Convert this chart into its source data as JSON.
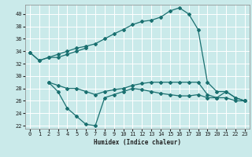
{
  "xlabel": "Humidex (Indice chaleur)",
  "background_color": "#caeaea",
  "grid_color": "#ffffff",
  "line_color": "#1a7070",
  "xlim": [
    -0.5,
    23.5
  ],
  "ylim": [
    21.5,
    41.5
  ],
  "yticks": [
    22,
    24,
    26,
    28,
    30,
    32,
    34,
    36,
    38,
    40
  ],
  "xticks": [
    0,
    1,
    2,
    3,
    4,
    5,
    6,
    7,
    8,
    9,
    10,
    11,
    12,
    13,
    14,
    15,
    16,
    17,
    18,
    19,
    20,
    21,
    22,
    23
  ],
  "line1_x": [
    0,
    1,
    2,
    3,
    4,
    5,
    6,
    7,
    8,
    9,
    10,
    11,
    12,
    13,
    14,
    15,
    16,
    17,
    18,
    19,
    20,
    21,
    22,
    23
  ],
  "line1_y": [
    33.8,
    32.5,
    33.0,
    33.5,
    34.0,
    34.5,
    34.8,
    35.2,
    36.0,
    36.8,
    37.5,
    38.3,
    38.8,
    39.0,
    39.5,
    40.5,
    41.0,
    40.0,
    37.5,
    29.0,
    27.5,
    27.5,
    26.5,
    26.0
  ],
  "line2_x": [
    0,
    1,
    2,
    3,
    4,
    5,
    6
  ],
  "line2_y": [
    33.8,
    32.5,
    33.0,
    33.0,
    33.5,
    34.0,
    34.5
  ],
  "line3_x": [
    2,
    3,
    4,
    5,
    6,
    7,
    8,
    9,
    10,
    11,
    12,
    13,
    14,
    15,
    16,
    17,
    18,
    19,
    20,
    21,
    22,
    23
  ],
  "line3_y": [
    29.0,
    27.5,
    24.8,
    23.5,
    22.2,
    22.0,
    26.5,
    27.0,
    27.5,
    28.0,
    27.8,
    27.5,
    27.2,
    27.0,
    26.8,
    26.8,
    27.0,
    26.5,
    26.5,
    27.5,
    26.5,
    26.0
  ],
  "line4_x": [
    2,
    3,
    4,
    5,
    6,
    7,
    8,
    9,
    10,
    11,
    12,
    13,
    14,
    15,
    16,
    17,
    18,
    19,
    20,
    21,
    22,
    23
  ],
  "line4_y": [
    29.0,
    28.5,
    28.0,
    28.0,
    27.5,
    27.0,
    27.5,
    27.8,
    28.0,
    28.5,
    28.8,
    29.0,
    29.0,
    29.0,
    29.0,
    29.0,
    29.0,
    27.0,
    26.5,
    26.5,
    26.0,
    26.0
  ]
}
